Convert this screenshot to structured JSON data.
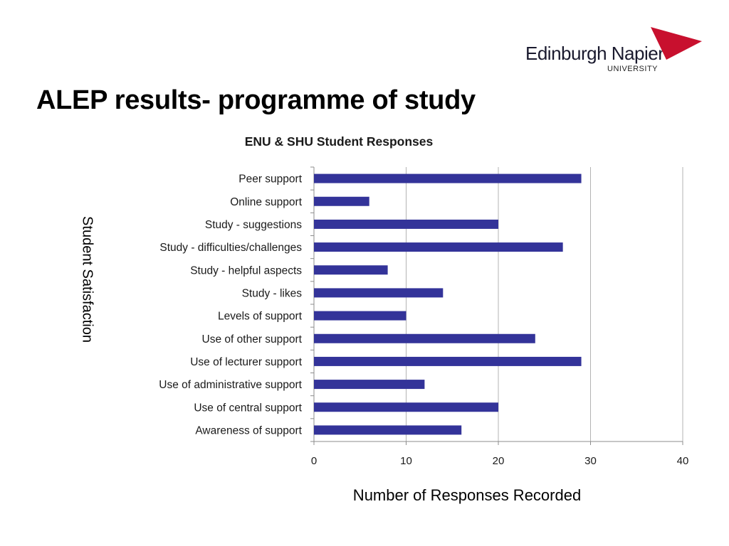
{
  "slide": {
    "title": "ALEP results- programme of study",
    "y_axis_label": "Student Satisfaction",
    "x_axis_label": "Number of Responses Recorded"
  },
  "logo": {
    "name": "Edinburgh Napier",
    "subtitle": "UNIVERSITY",
    "accent_color": "#c8102e"
  },
  "chart_data": {
    "type": "bar",
    "orientation": "horizontal",
    "title": "ENU & SHU Student Responses",
    "categories": [
      "Peer support",
      "Online support",
      "Study - suggestions",
      "Study - difficulties/challenges",
      "Study - helpful aspects",
      "Study - likes",
      "Levels of support",
      "Use of other support",
      "Use of lecturer support",
      "Use of administrative support",
      "Use of central support",
      "Awareness of support"
    ],
    "values": [
      29,
      6,
      20,
      27,
      8,
      14,
      10,
      24,
      29,
      12,
      20,
      16
    ],
    "xlim": [
      0,
      40
    ],
    "xticks": [
      0,
      10,
      20,
      30,
      40
    ],
    "grid": true,
    "bar_color": "#333399"
  }
}
